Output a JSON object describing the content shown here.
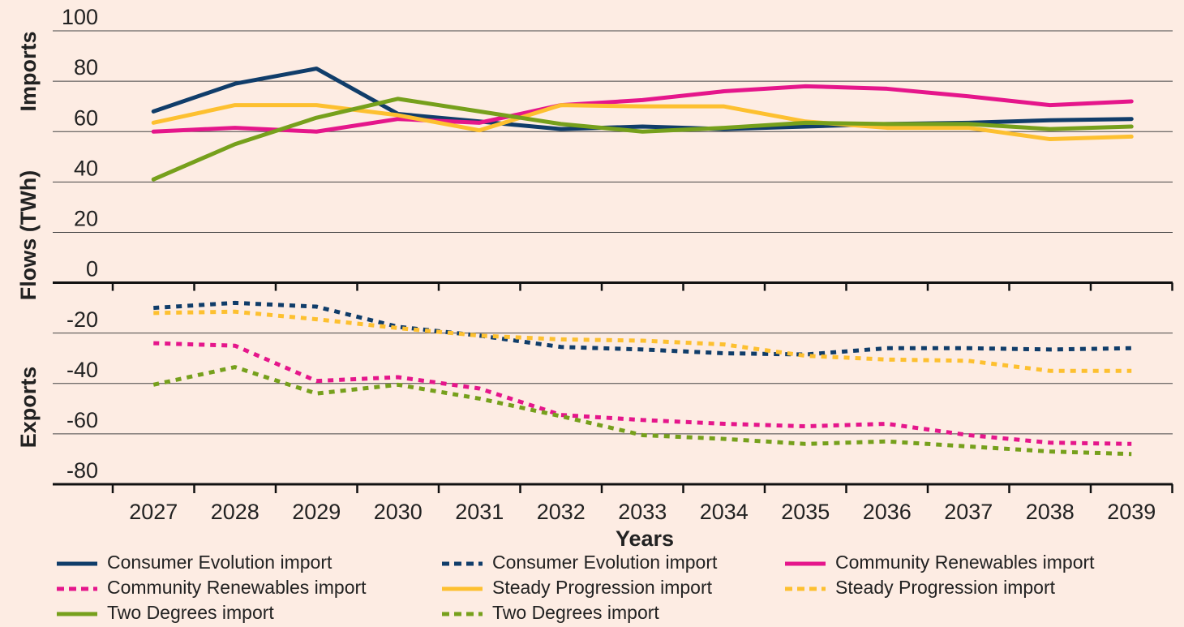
{
  "chart_data": {
    "type": "line",
    "xlabel": "Years",
    "y_labels": [
      "Imports",
      "Flows (TWh)",
      "Exports"
    ],
    "categories": [
      "2027",
      "2028",
      "2029",
      "2030",
      "2031",
      "2032",
      "2033",
      "2034",
      "2035",
      "2036",
      "2037",
      "2038",
      "2039"
    ],
    "ylim": [
      -80,
      100
    ],
    "yticks": [
      100,
      80,
      60,
      40,
      20,
      0,
      -20,
      -40,
      -60,
      -80
    ],
    "grid": true,
    "legend": "bottom",
    "series": [
      {
        "name": "Consumer Evolution import",
        "color": "#103d6a",
        "dashed": false,
        "values": [
          68,
          79,
          85,
          67,
          64,
          61,
          62,
          61,
          62,
          63,
          63.5,
          64.5,
          65
        ]
      },
      {
        "name": "Consumer Evolution import",
        "color": "#103d6a",
        "dashed": true,
        "values": [
          -10,
          -8,
          -9.5,
          -17.5,
          -21,
          -25.5,
          -26.5,
          -28,
          -28.5,
          -26,
          -26,
          -26.5,
          -26
        ]
      },
      {
        "name": "Community Renewables import",
        "color": "#e5168b",
        "dashed": false,
        "values": [
          60,
          61.5,
          60,
          65,
          63.5,
          70.5,
          72.5,
          76,
          78,
          77,
          74,
          70.5,
          72
        ]
      },
      {
        "name": "Community Renewables import",
        "color": "#e5168b",
        "dashed": true,
        "values": [
          -24,
          -25,
          -39,
          -37.5,
          -42,
          -52.5,
          -54.5,
          -56,
          -57,
          -56,
          -60.5,
          -63.5,
          -64
        ]
      },
      {
        "name": "Steady Progression import",
        "color": "#fdc030",
        "dashed": false,
        "values": [
          63.5,
          70.5,
          70.5,
          66.5,
          60.5,
          70.5,
          70,
          70,
          64,
          61.5,
          61.5,
          57,
          58
        ]
      },
      {
        "name": "Steady Progression import",
        "color": "#fdc030",
        "dashed": true,
        "values": [
          -12,
          -11.5,
          -14.5,
          -18,
          -21,
          -22.5,
          -23,
          -24.5,
          -29,
          -30.5,
          -31,
          -35,
          -35
        ]
      },
      {
        "name": "Two Degrees import",
        "color": "#76a01c",
        "dashed": false,
        "values": [
          41,
          55,
          65.5,
          73,
          68,
          63,
          60,
          61.5,
          63.5,
          63,
          63,
          61,
          62
        ]
      },
      {
        "name": "Two Degrees import",
        "color": "#76a01c",
        "dashed": true,
        "values": [
          -40.5,
          -33.5,
          -44,
          -40.5,
          -46,
          -53,
          -60.5,
          -62,
          -64,
          -63,
          -65,
          -67,
          -68
        ]
      }
    ]
  }
}
